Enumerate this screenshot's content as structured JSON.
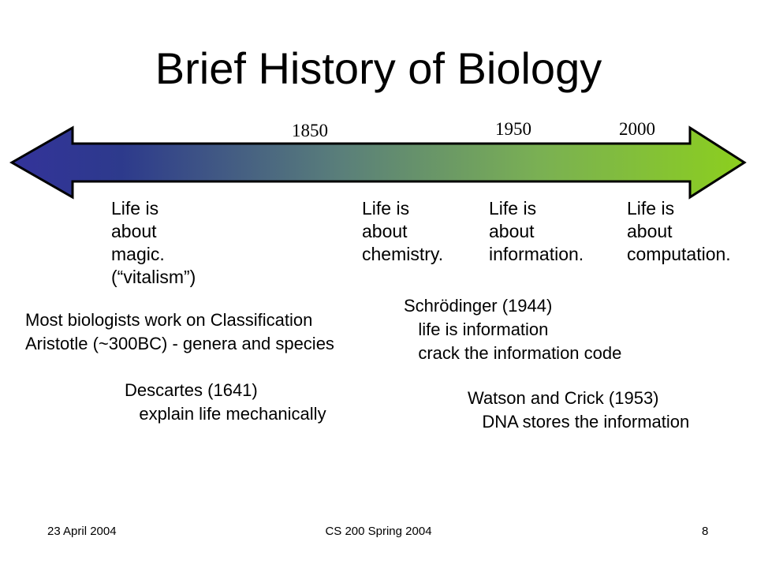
{
  "slide": {
    "title": "Brief History of Biology",
    "timeline": {
      "gradient_colors": [
        "#33339a",
        "#2d3a8c",
        "#5a7f7a",
        "#7ab053",
        "#8ccf1e"
      ],
      "years": [
        "1850",
        "1950",
        "2000"
      ]
    },
    "eras": [
      "Life is\nabout\nmagic.\n(“vitalism”)",
      "Life is\nabout\nchemistry.",
      "Life is\nabout\ninformation.",
      "Life is\nabout\ncomputation."
    ],
    "notes": {
      "classification": "Most biologists work on Classification\nAristotle (~300BC) - genera and species",
      "descartes": "Descartes (1641)\n   explain life mechanically",
      "schrodinger": "Schrödinger (1944)\n   life is information\n   crack the information code",
      "watson_crick": "Watson and Crick (1953)\n   DNA stores the information"
    },
    "footer": {
      "date": "23 April 2004",
      "course": "CS 200 Spring 2004",
      "page": "8"
    }
  }
}
